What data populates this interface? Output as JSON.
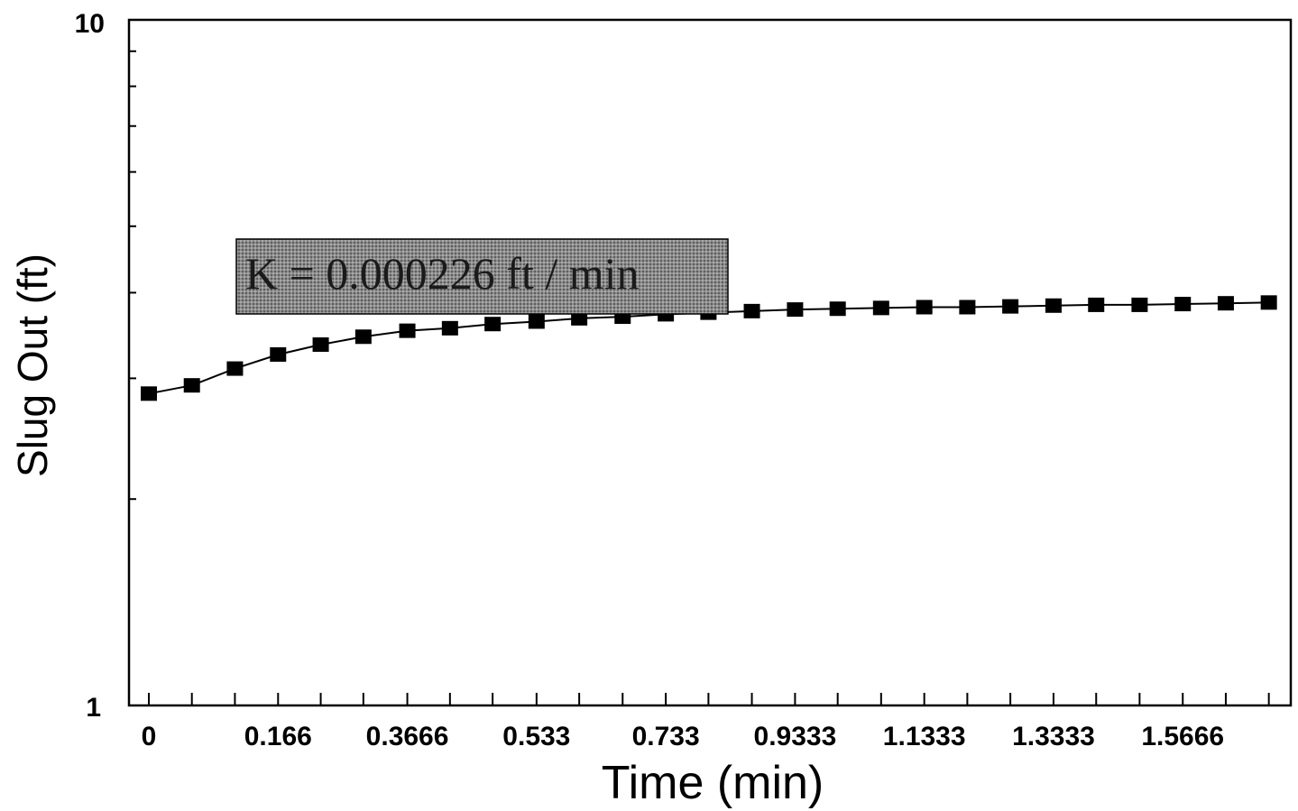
{
  "chart_data": {
    "type": "line",
    "xlabel": "Time (min)",
    "ylabel": "Slug Out (ft)",
    "y_scale": "log",
    "ylim": [
      1,
      10
    ],
    "y_tick_labels": [
      "1",
      "10"
    ],
    "x_tick_labels": [
      "0",
      "0.166",
      "0.3666",
      "0.533",
      "0.733",
      "0.9333",
      "1.1333",
      "1.3333",
      "1.5666"
    ],
    "annotation": "K = 0.000226 ft / min",
    "grid": false,
    "marker": "square",
    "line_color": "#000000",
    "series": [
      {
        "x": [
          0,
          0.0333,
          0.0666,
          0.1,
          0.133,
          0.166,
          0.2,
          0.233,
          0.266,
          0.3,
          0.333,
          0.3666,
          0.4,
          0.433,
          0.4666,
          0.5,
          0.533,
          0.5666,
          0.6,
          0.6333,
          0.6666,
          0.7,
          0.733,
          0.7666,
          0.8,
          0.8333,
          0.8666
        ],
        "values": [
          2.85,
          2.93,
          3.1,
          3.25,
          3.36,
          3.45,
          3.52,
          3.55,
          3.6,
          3.63,
          3.67,
          3.69,
          3.72,
          3.74,
          3.76,
          3.78,
          3.79,
          3.8,
          3.81,
          3.81,
          3.82,
          3.83,
          3.84,
          3.84,
          3.85,
          3.86,
          3.87
        ]
      }
    ]
  }
}
